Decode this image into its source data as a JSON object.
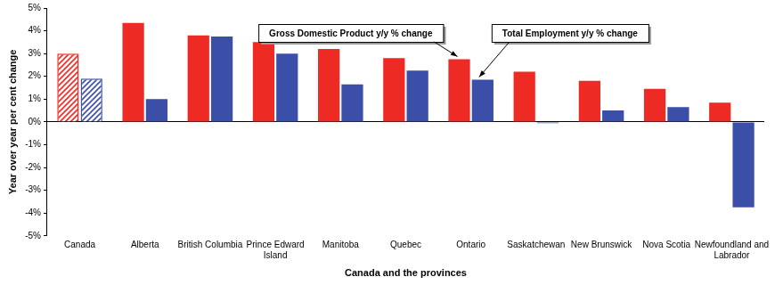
{
  "chart_data": {
    "type": "bar",
    "x_label": "Canada and the provinces",
    "y_label": "Year over year per cent change",
    "categories": [
      "Canada",
      "Alberta",
      "British Columbia",
      "Prince Edward Island",
      "Manitoba",
      "Quebec",
      "Ontario",
      "Saskatchewan",
      "New Brunswick",
      "Nova Scotia",
      "Newfoundland and Labrador"
    ],
    "series": [
      {
        "name": "Gross Domestic Product y/y % change",
        "color": "#ee2a24",
        "values": [
          3.0,
          4.35,
          3.8,
          3.5,
          3.2,
          2.8,
          2.75,
          2.2,
          1.8,
          1.45,
          0.85
        ]
      },
      {
        "name": "Total Employment y/y % change",
        "color": "#3b4fa8",
        "values": [
          1.9,
          1.0,
          3.75,
          3.0,
          1.65,
          2.25,
          1.85,
          -0.05,
          0.5,
          0.65,
          -3.75
        ]
      }
    ],
    "annotations": [
      {
        "text": "Gross Domestic Product y/y % change",
        "x": "Ontario"
      },
      {
        "text": "Total Employment y/y % change",
        "x": "Ontario"
      }
    ],
    "ylim": [
      -5,
      5
    ],
    "yticks": [
      {
        "value": -5,
        "label": "-5%"
      },
      {
        "value": -4,
        "label": "-4%"
      },
      {
        "value": -3,
        "label": "-3%"
      },
      {
        "value": -2,
        "label": "-2%"
      },
      {
        "value": -1,
        "label": "-1%"
      },
      {
        "value": 0,
        "label": "0%"
      },
      {
        "value": 1,
        "label": "1%"
      },
      {
        "value": 2,
        "label": "2%"
      },
      {
        "value": 3,
        "label": "3%"
      },
      {
        "value": 4,
        "label": "4%"
      },
      {
        "value": 5,
        "label": "5%"
      }
    ],
    "grid": false
  }
}
